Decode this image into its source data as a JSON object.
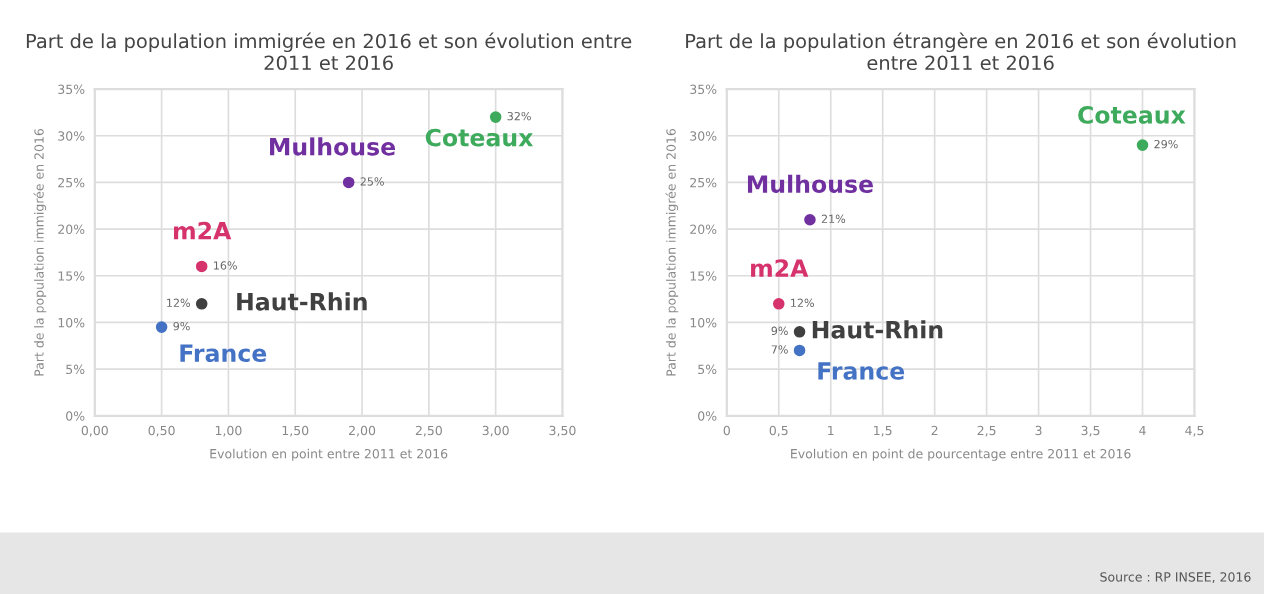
{
  "chart_data": [
    {
      "type": "scatter",
      "title": "Part de la population immigrée en 2016 et son évolution entre 2011 et 2016",
      "xlabel": "Evolution en point entre 2011 et 2016",
      "ylabel": "Part de la population immigrée en 2016",
      "grid": true,
      "marker": "circle",
      "xlim": [
        0,
        3.5
      ],
      "xticks": [
        {
          "value": 0,
          "label": "0,00"
        },
        {
          "value": 0.5,
          "label": "0,50"
        },
        {
          "value": 1,
          "label": "1,00"
        },
        {
          "value": 1.5,
          "label": "1,50"
        },
        {
          "value": 2,
          "label": "2,00"
        },
        {
          "value": 2.5,
          "label": "2,50"
        },
        {
          "value": 3,
          "label": "3,00"
        },
        {
          "value": 3.5,
          "label": "3,50"
        }
      ],
      "ylim": [
        0,
        35
      ],
      "yticks": [
        {
          "value": 0,
          "label": "0%"
        },
        {
          "value": 5,
          "label": "5%"
        },
        {
          "value": 10,
          "label": "10%"
        },
        {
          "value": 15,
          "label": "15%"
        },
        {
          "value": 20,
          "label": "20%"
        },
        {
          "value": 25,
          "label": "25%"
        },
        {
          "value": 30,
          "label": "30%"
        },
        {
          "value": 35,
          "label": "35%"
        }
      ],
      "series": [
        {
          "name": "Coteaux",
          "color": "#3daa5c",
          "x": [
            3.0
          ],
          "values": [
            32
          ],
          "value_labels": [
            "32%"
          ]
        },
        {
          "name": "Mulhouse",
          "color": "#7030a0",
          "x": [
            1.9
          ],
          "values": [
            25
          ],
          "value_labels": [
            "25%"
          ]
        },
        {
          "name": "m2A",
          "color": "#d6336c",
          "x": [
            0.8
          ],
          "values": [
            16
          ],
          "value_labels": [
            "16%"
          ]
        },
        {
          "name": "Haut-Rhin",
          "color": "#404040",
          "x": [
            0.8
          ],
          "values": [
            12
          ],
          "value_labels": [
            "12%"
          ]
        },
        {
          "name": "France",
          "color": "#4472c4",
          "x": [
            0.5
          ],
          "values": [
            9.5
          ],
          "value_labels": [
            "9%"
          ]
        }
      ]
    },
    {
      "type": "scatter",
      "title": "Part de la population étrangère en 2016 et son évolution entre 2011 et 2016",
      "xlabel": "Evolution en point de pourcentage entre 2011 et 2016",
      "ylabel": "Part de la population immigrée en 2016",
      "grid": true,
      "marker": "circle",
      "xlim": [
        0,
        4.5
      ],
      "xticks": [
        {
          "value": 0,
          "label": "0"
        },
        {
          "value": 0.5,
          "label": "0,5"
        },
        {
          "value": 1,
          "label": "1"
        },
        {
          "value": 1.5,
          "label": "1,5"
        },
        {
          "value": 2,
          "label": "2"
        },
        {
          "value": 2.5,
          "label": "2,5"
        },
        {
          "value": 3,
          "label": "3"
        },
        {
          "value": 3.5,
          "label": "3,5"
        },
        {
          "value": 4,
          "label": "4"
        },
        {
          "value": 4.5,
          "label": "4,5"
        }
      ],
      "ylim": [
        0,
        35
      ],
      "yticks": [
        {
          "value": 0,
          "label": "0%"
        },
        {
          "value": 5,
          "label": "5%"
        },
        {
          "value": 10,
          "label": "10%"
        },
        {
          "value": 15,
          "label": "15%"
        },
        {
          "value": 20,
          "label": "20%"
        },
        {
          "value": 25,
          "label": "25%"
        },
        {
          "value": 30,
          "label": "30%"
        },
        {
          "value": 35,
          "label": "35%"
        }
      ],
      "annotations": [
        "Source : RP INSEE, 2016"
      ],
      "series": [
        {
          "name": "Coteaux",
          "color": "#3daa5c",
          "x": [
            4.0
          ],
          "values": [
            29
          ],
          "value_labels": [
            "29%"
          ]
        },
        {
          "name": "Mulhouse",
          "color": "#7030a0",
          "x": [
            0.8
          ],
          "values": [
            21
          ],
          "value_labels": [
            "21%"
          ]
        },
        {
          "name": "m2A",
          "color": "#d6336c",
          "x": [
            0.5
          ],
          "values": [
            12
          ],
          "value_labels": [
            "12%"
          ]
        },
        {
          "name": "Haut-Rhin",
          "color": "#404040",
          "x": [
            0.7
          ],
          "values": [
            9
          ],
          "value_labels": [
            "9%"
          ]
        },
        {
          "name": "France",
          "color": "#4472c4",
          "x": [
            0.7
          ],
          "values": [
            7
          ],
          "value_labels": [
            "7%"
          ]
        }
      ]
    }
  ]
}
